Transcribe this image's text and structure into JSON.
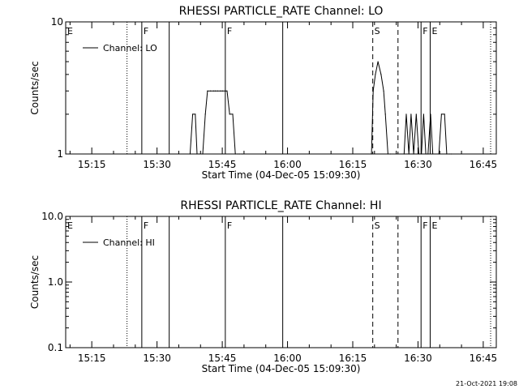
{
  "footer_timestamp": "21-Oct-2021 19:08",
  "chart_data": [
    {
      "type": "line",
      "title": "RHESSI PARTICLE_RATE Channel: LO",
      "xlabel": "Start Time (04-Dec-05 15:09:30)",
      "ylabel": "Counts/sec",
      "y_scale": "log",
      "ylim": [
        1,
        10
      ],
      "y_ticks": [
        {
          "value": 1,
          "label": "1"
        },
        {
          "value": 10,
          "label": "10"
        }
      ],
      "x_range_min": [
        -0.5,
        98.5
      ],
      "x_ticks": [
        {
          "min": 5.5,
          "label": "15:15"
        },
        {
          "min": 20.5,
          "label": "15:30"
        },
        {
          "min": 35.5,
          "label": "15:45"
        },
        {
          "min": 50.5,
          "label": "16:00"
        },
        {
          "min": 65.5,
          "label": "16:15"
        },
        {
          "min": 80.5,
          "label": "16:30"
        },
        {
          "min": 95.5,
          "label": "16:45"
        }
      ],
      "legend": {
        "label": "Channel: LO",
        "placement": "top-left"
      },
      "markers": [
        {
          "min": 0,
          "label": "E",
          "style": "none"
        },
        {
          "min": 13.6,
          "label": "",
          "style": "dotted"
        },
        {
          "min": 17.0,
          "label": "F",
          "style": "solid"
        },
        {
          "min": 23.3,
          "label": "",
          "style": "solid"
        },
        {
          "min": 36.2,
          "label": "F",
          "style": "solid"
        },
        {
          "min": 49.4,
          "label": "",
          "style": "solid"
        },
        {
          "min": 70.1,
          "label": "S",
          "style": "dashed"
        },
        {
          "min": 75.9,
          "label": "",
          "style": "dashed"
        },
        {
          "min": 81.2,
          "label": "F",
          "style": "solid"
        },
        {
          "min": 83.3,
          "label": "E",
          "style": "solid"
        },
        {
          "min": 97.2,
          "label": "",
          "style": "dotted"
        }
      ],
      "series": [
        {
          "x": [
            28.1,
            28.7,
            29.3,
            29.7,
            30.2,
            31.0,
            31.6,
            32.1,
            32.8,
            33.5,
            33.9,
            34.4,
            35.1,
            35.6,
            36.2,
            36.6,
            37.2,
            37.9,
            38.5,
            39.1,
            39.5,
            40.1,
            69.8,
            70.2,
            70.7,
            71.3,
            72.0,
            72.6,
            73.0,
            73.6,
            74.1,
            77.3,
            77.8,
            78.4,
            78.9,
            79.5,
            80.1,
            80.7,
            81.3,
            81.8,
            82.3,
            82.8,
            83.4,
            83.9,
            85.3,
            85.9,
            86.6,
            87.1,
            87.7,
            88.2
          ],
          "y": [
            1,
            2,
            2,
            1,
            1,
            1,
            2,
            3,
            3,
            3,
            3,
            3,
            3,
            3,
            3,
            3,
            2,
            2,
            1,
            1,
            1,
            1,
            1,
            3,
            4,
            5,
            4,
            3,
            2,
            1,
            1,
            1,
            2,
            1,
            2,
            1,
            2,
            1,
            1,
            2,
            1,
            1,
            2,
            1,
            1,
            2,
            2,
            1,
            1,
            1
          ]
        }
      ]
    },
    {
      "type": "line",
      "title": "RHESSI PARTICLE_RATE Channel: HI",
      "xlabel": "Start Time (04-Dec-05 15:09:30)",
      "ylabel": "Counts/sec",
      "y_scale": "log",
      "ylim": [
        0.1,
        10
      ],
      "y_ticks": [
        {
          "value": 0.1,
          "label": "0.1"
        },
        {
          "value": 1,
          "label": "1.0"
        },
        {
          "value": 10,
          "label": "10.0"
        }
      ],
      "x_range_min": [
        -0.5,
        98.5
      ],
      "x_ticks": [
        {
          "min": 5.5,
          "label": "15:15"
        },
        {
          "min": 20.5,
          "label": "15:30"
        },
        {
          "min": 35.5,
          "label": "15:45"
        },
        {
          "min": 50.5,
          "label": "16:00"
        },
        {
          "min": 65.5,
          "label": "16:15"
        },
        {
          "min": 80.5,
          "label": "16:30"
        },
        {
          "min": 95.5,
          "label": "16:45"
        }
      ],
      "legend": {
        "label": "Channel: HI",
        "placement": "top-left"
      },
      "markers": [
        {
          "min": 0,
          "label": "E",
          "style": "none"
        },
        {
          "min": 13.6,
          "label": "",
          "style": "dotted"
        },
        {
          "min": 17.0,
          "label": "F",
          "style": "solid"
        },
        {
          "min": 23.3,
          "label": "",
          "style": "solid"
        },
        {
          "min": 36.2,
          "label": "F",
          "style": "solid"
        },
        {
          "min": 49.4,
          "label": "",
          "style": "solid"
        },
        {
          "min": 70.1,
          "label": "S",
          "style": "dashed"
        },
        {
          "min": 75.9,
          "label": "",
          "style": "dashed"
        },
        {
          "min": 81.2,
          "label": "F",
          "style": "solid"
        },
        {
          "min": 83.3,
          "label": "E",
          "style": "solid"
        },
        {
          "min": 97.2,
          "label": "",
          "style": "dotted"
        }
      ],
      "series": [
        {
          "x": [],
          "y": []
        }
      ]
    }
  ]
}
